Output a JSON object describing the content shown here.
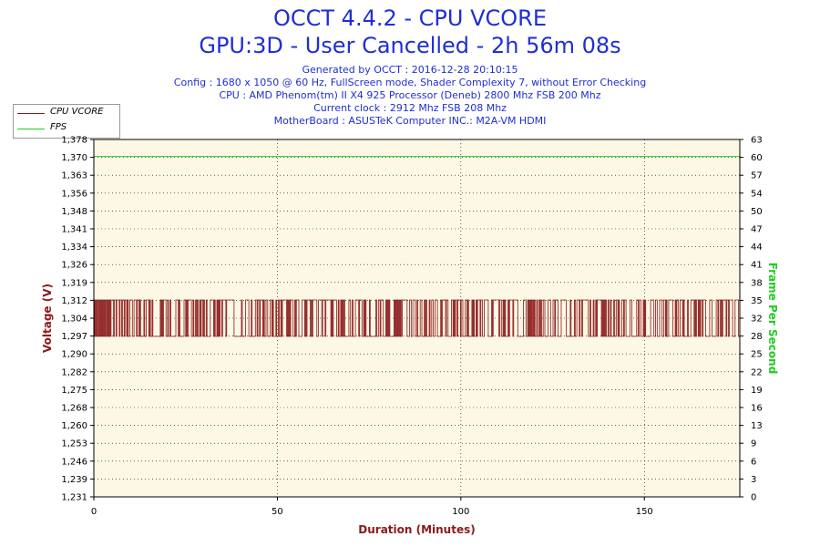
{
  "header": {
    "title": "OCCT 4.4.2 - CPU VCORE",
    "subtitle": "GPU:3D - User Cancelled - 2h 56m 08s",
    "info_lines": [
      "Generated by OCCT : 2016-12-28 20:10:15",
      "Config : 1680 x 1050 @ 60 Hz, FullScreen mode, Shader Complexity 7, without Error Checking",
      "CPU : AMD Phenom(tm) II X4 925 Processor (Deneb) 2800 Mhz FSB 200 Mhz",
      "Current clock : 2912 Mhz FSB 208 Mhz",
      "MotherBoard : ASUSTeK Computer INC.: M2A-VM HDMI"
    ]
  },
  "legend": {
    "items": [
      {
        "label": "CPU VCORE",
        "color": "#8b1a1a"
      },
      {
        "label": "FPS",
        "color": "#22cc22"
      }
    ]
  },
  "chart_data": {
    "type": "line",
    "title": "OCCT 4.4.2 - CPU VCORE",
    "xlabel": "Duration (Minutes)",
    "ylabel": "Voltage (V)",
    "y2label": "Frame Per Second",
    "xlim": [
      0,
      176
    ],
    "ylim": [
      1.231,
      1.378
    ],
    "y2lim": [
      0,
      63
    ],
    "x_ticks": [
      "0",
      "50",
      "100",
      "150"
    ],
    "x_tick_values": [
      0,
      50,
      100,
      150
    ],
    "y_ticks": [
      "1,231",
      "1,239",
      "1,246",
      "1,253",
      "1,260",
      "1,268",
      "1,275",
      "1,282",
      "1,290",
      "1,297",
      "1,304",
      "1,312",
      "1,319",
      "1,326",
      "1,334",
      "1,341",
      "1,348",
      "1,356",
      "1,363",
      "1,370",
      "1,378"
    ],
    "y2_ticks": [
      "0",
      "3",
      "6",
      "9",
      "13",
      "16",
      "19",
      "22",
      "25",
      "28",
      "32",
      "35",
      "38",
      "41",
      "44",
      "47",
      "50",
      "54",
      "57",
      "60",
      "63"
    ],
    "grid": true,
    "legend_position": "top-left",
    "series": [
      {
        "name": "CPU VCORE",
        "axis": "left",
        "color": "#8b1a1a",
        "oscillates_between": [
          1.297,
          1.312
        ],
        "x_range": [
          0,
          176
        ]
      },
      {
        "name": "FPS",
        "axis": "right",
        "color": "#22cc22",
        "x": [
          0,
          176
        ],
        "y": [
          60,
          60
        ]
      }
    ],
    "colors": {
      "plot_background": "#fdf8e6",
      "axis_label_left": "#8b1a1a",
      "axis_label_right": "#22cc22",
      "axis_label_x": "#8b1a1a",
      "title_color": "#1f2fd2"
    }
  }
}
